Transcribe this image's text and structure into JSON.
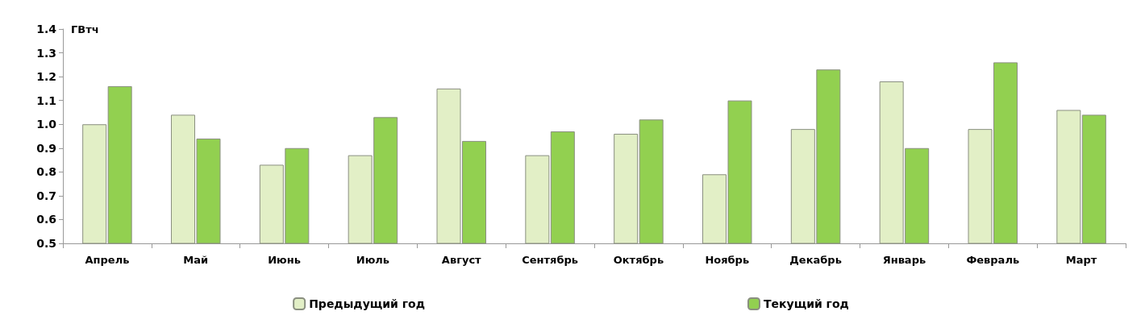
{
  "chart_data": {
    "type": "bar",
    "ylabel": "ГВтч",
    "categories": [
      "Апрель",
      "Май",
      "Июнь",
      "Июль",
      "Август",
      "Сентябрь",
      "Октябрь",
      "Ноябрь",
      "Декабрь",
      "Январь",
      "Февраль",
      "Март"
    ],
    "series": [
      {
        "name": "Предыдущий год",
        "color": "#e2efc6",
        "values": [
          1.0,
          1.04,
          0.83,
          0.87,
          1.15,
          0.87,
          0.96,
          0.79,
          0.98,
          1.18,
          0.98,
          1.06
        ]
      },
      {
        "name": "Текущий год",
        "color": "#92d050",
        "values": [
          1.16,
          0.94,
          0.9,
          1.03,
          0.93,
          0.97,
          1.02,
          1.1,
          1.23,
          0.9,
          1.26,
          1.04
        ]
      }
    ],
    "ylim": [
      0.5,
      1.4
    ],
    "yticks": [
      0.5,
      0.6,
      0.7,
      0.8,
      0.9,
      {
        "value": 1,
        "label": "1.0"
      },
      1.1,
      1.2,
      1.3,
      1.4
    ],
    "grid": false,
    "legend": "bottom"
  }
}
